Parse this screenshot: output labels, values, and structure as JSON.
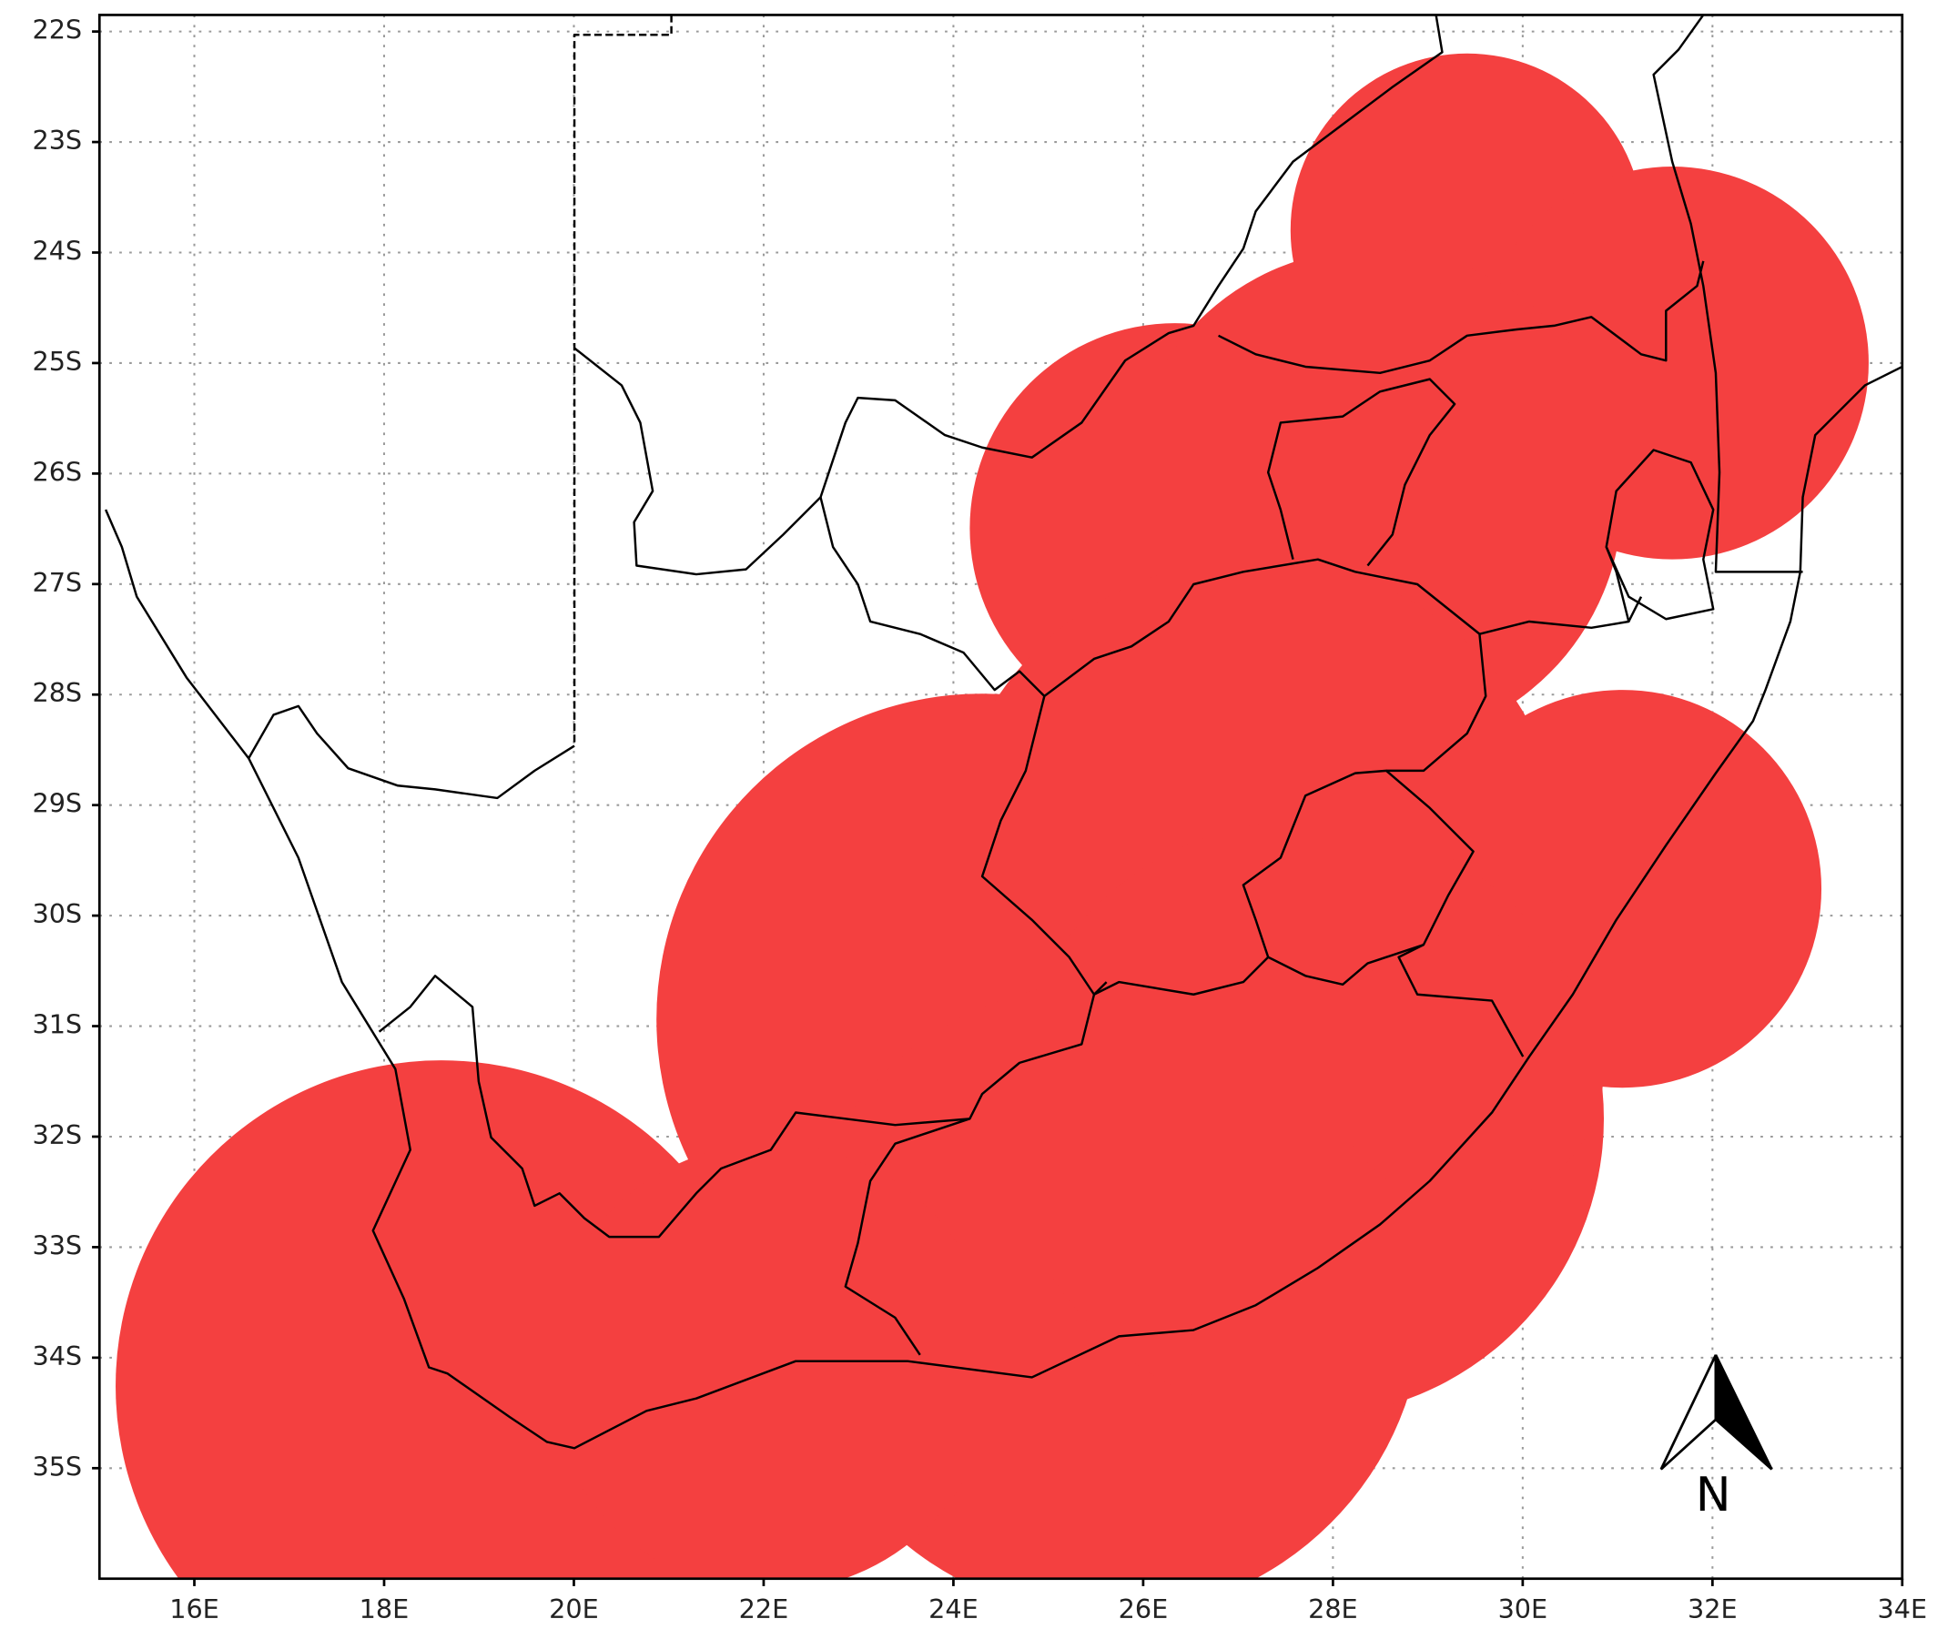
{
  "map": {
    "xlim": [
      15,
      34
    ],
    "ylim": [
      -36,
      -21.85
    ],
    "xticks": [
      {
        "value": 16,
        "label": "16E"
      },
      {
        "value": 18,
        "label": "18E"
      },
      {
        "value": 20,
        "label": "20E"
      },
      {
        "value": 22,
        "label": "22E"
      },
      {
        "value": 24,
        "label": "24E"
      },
      {
        "value": 26,
        "label": "26E"
      },
      {
        "value": 28,
        "label": "28E"
      },
      {
        "value": 30,
        "label": "30E"
      },
      {
        "value": 32,
        "label": "32E"
      },
      {
        "value": 34,
        "label": "34E"
      }
    ],
    "yticks": [
      {
        "value": -22,
        "label": "22S"
      },
      {
        "value": -23,
        "label": "23S"
      },
      {
        "value": -24,
        "label": "24S"
      },
      {
        "value": -25,
        "label": "25S"
      },
      {
        "value": -26,
        "label": "26S"
      },
      {
        "value": -27,
        "label": "27S"
      },
      {
        "value": -28,
        "label": "28S"
      },
      {
        "value": -29,
        "label": "29S"
      },
      {
        "value": -30,
        "label": "30S"
      },
      {
        "value": -31,
        "label": "31S"
      },
      {
        "value": -32,
        "label": "32S"
      },
      {
        "value": -33,
        "label": "33S"
      },
      {
        "value": -34,
        "label": "34S"
      },
      {
        "value": -35,
        "label": "35S"
      }
    ],
    "north_label": "N"
  }
}
